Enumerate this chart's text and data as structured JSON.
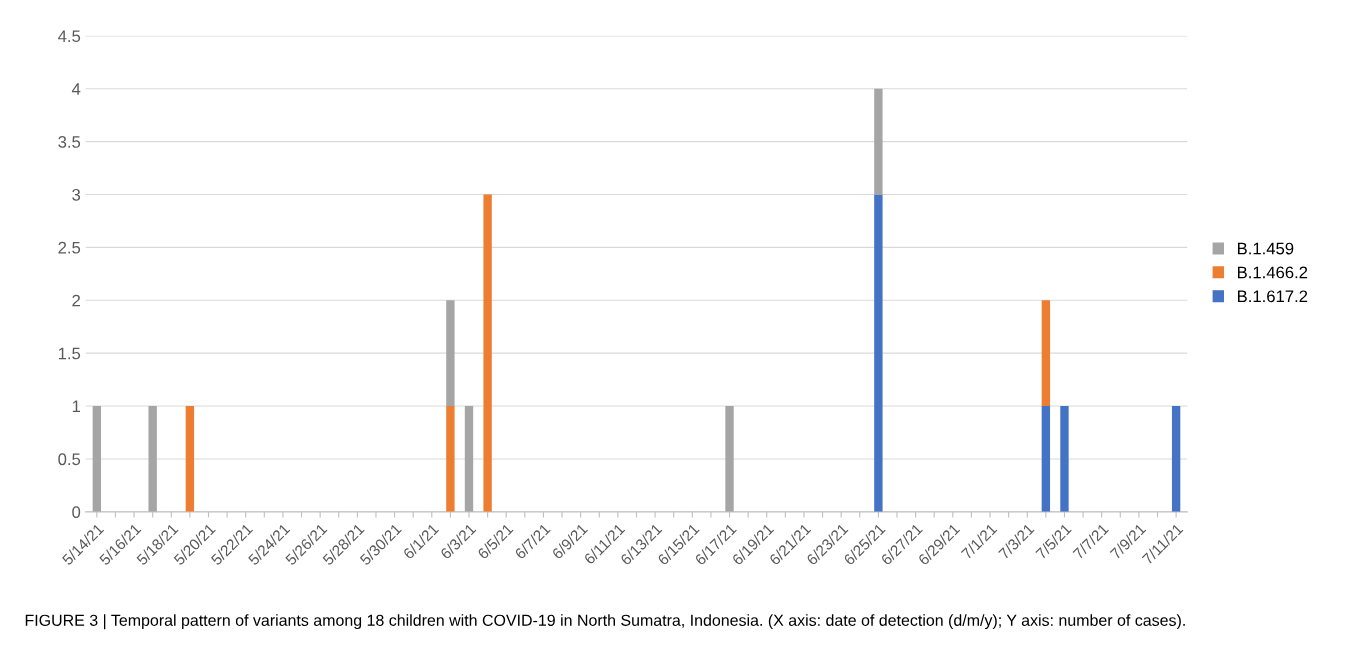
{
  "chart_data": {
    "type": "bar",
    "stacked": true,
    "categories": [
      "5/14/21",
      null,
      "5/16/21",
      null,
      "5/18/21",
      null,
      "5/20/21",
      null,
      "5/22/21",
      null,
      "5/24/21",
      null,
      "5/26/21",
      null,
      "5/28/21",
      null,
      "5/30/21",
      null,
      "6/1/21",
      null,
      "6/3/21",
      null,
      "6/5/21",
      null,
      "6/7/21",
      null,
      "6/9/21",
      null,
      "6/11/21",
      null,
      "6/13/21",
      null,
      "6/15/21",
      null,
      "6/17/21",
      null,
      "6/19/21",
      null,
      "6/21/21",
      null,
      "6/23/21",
      null,
      "6/25/21",
      null,
      "6/27/21",
      null,
      "6/29/21",
      null,
      "7/1/21",
      null,
      "7/3/21",
      null,
      "7/5/21",
      null,
      "7/7/21",
      null,
      "7/9/21",
      null,
      "7/11/21"
    ],
    "series": [
      {
        "name": "B.1.617.2",
        "color": "#4472c4",
        "values": [
          null,
          null,
          null,
          null,
          null,
          null,
          null,
          null,
          null,
          null,
          null,
          null,
          null,
          null,
          null,
          null,
          null,
          null,
          null,
          null,
          null,
          null,
          null,
          null,
          null,
          null,
          null,
          null,
          null,
          null,
          null,
          null,
          null,
          null,
          null,
          null,
          null,
          null,
          null,
          null,
          null,
          null,
          3,
          null,
          null,
          null,
          null,
          null,
          null,
          null,
          null,
          1,
          1,
          null,
          null,
          null,
          null,
          null,
          1
        ]
      },
      {
        "name": "B.1.466.2",
        "color": "#ed7d31",
        "values": [
          null,
          null,
          null,
          null,
          null,
          1,
          null,
          null,
          null,
          null,
          null,
          null,
          null,
          null,
          null,
          null,
          null,
          null,
          null,
          1,
          null,
          3,
          null,
          null,
          null,
          null,
          null,
          null,
          null,
          null,
          null,
          null,
          null,
          null,
          null,
          null,
          null,
          null,
          null,
          null,
          null,
          null,
          null,
          null,
          null,
          null,
          null,
          null,
          null,
          null,
          null,
          1,
          null,
          null,
          null,
          null,
          null,
          null,
          null
        ]
      },
      {
        "name": "B.1.459",
        "color": "#a5a5a5",
        "values": [
          1,
          null,
          null,
          1,
          null,
          null,
          null,
          null,
          null,
          null,
          null,
          null,
          null,
          null,
          null,
          null,
          null,
          null,
          null,
          1,
          1,
          null,
          null,
          null,
          null,
          null,
          null,
          null,
          null,
          null,
          null,
          null,
          null,
          null,
          1,
          null,
          null,
          null,
          null,
          null,
          null,
          null,
          1,
          null,
          null,
          null,
          null,
          null,
          null,
          null,
          null,
          null,
          null,
          null,
          null,
          null,
          null,
          null,
          null
        ]
      }
    ],
    "ylim": [
      0,
      4.5
    ],
    "yticks": [
      0,
      0.5,
      1,
      1.5,
      2,
      2.5,
      3,
      3.5,
      4,
      4.5
    ],
    "grid": "y",
    "legend": "right",
    "annotations": [
      "FIGURE 3 | Temporal pattern of variants among 18 children with COVID-19 in North Sumatra, Indonesia. (X axis: date of detection (d/m/y); Y axis: number of cases)."
    ]
  }
}
